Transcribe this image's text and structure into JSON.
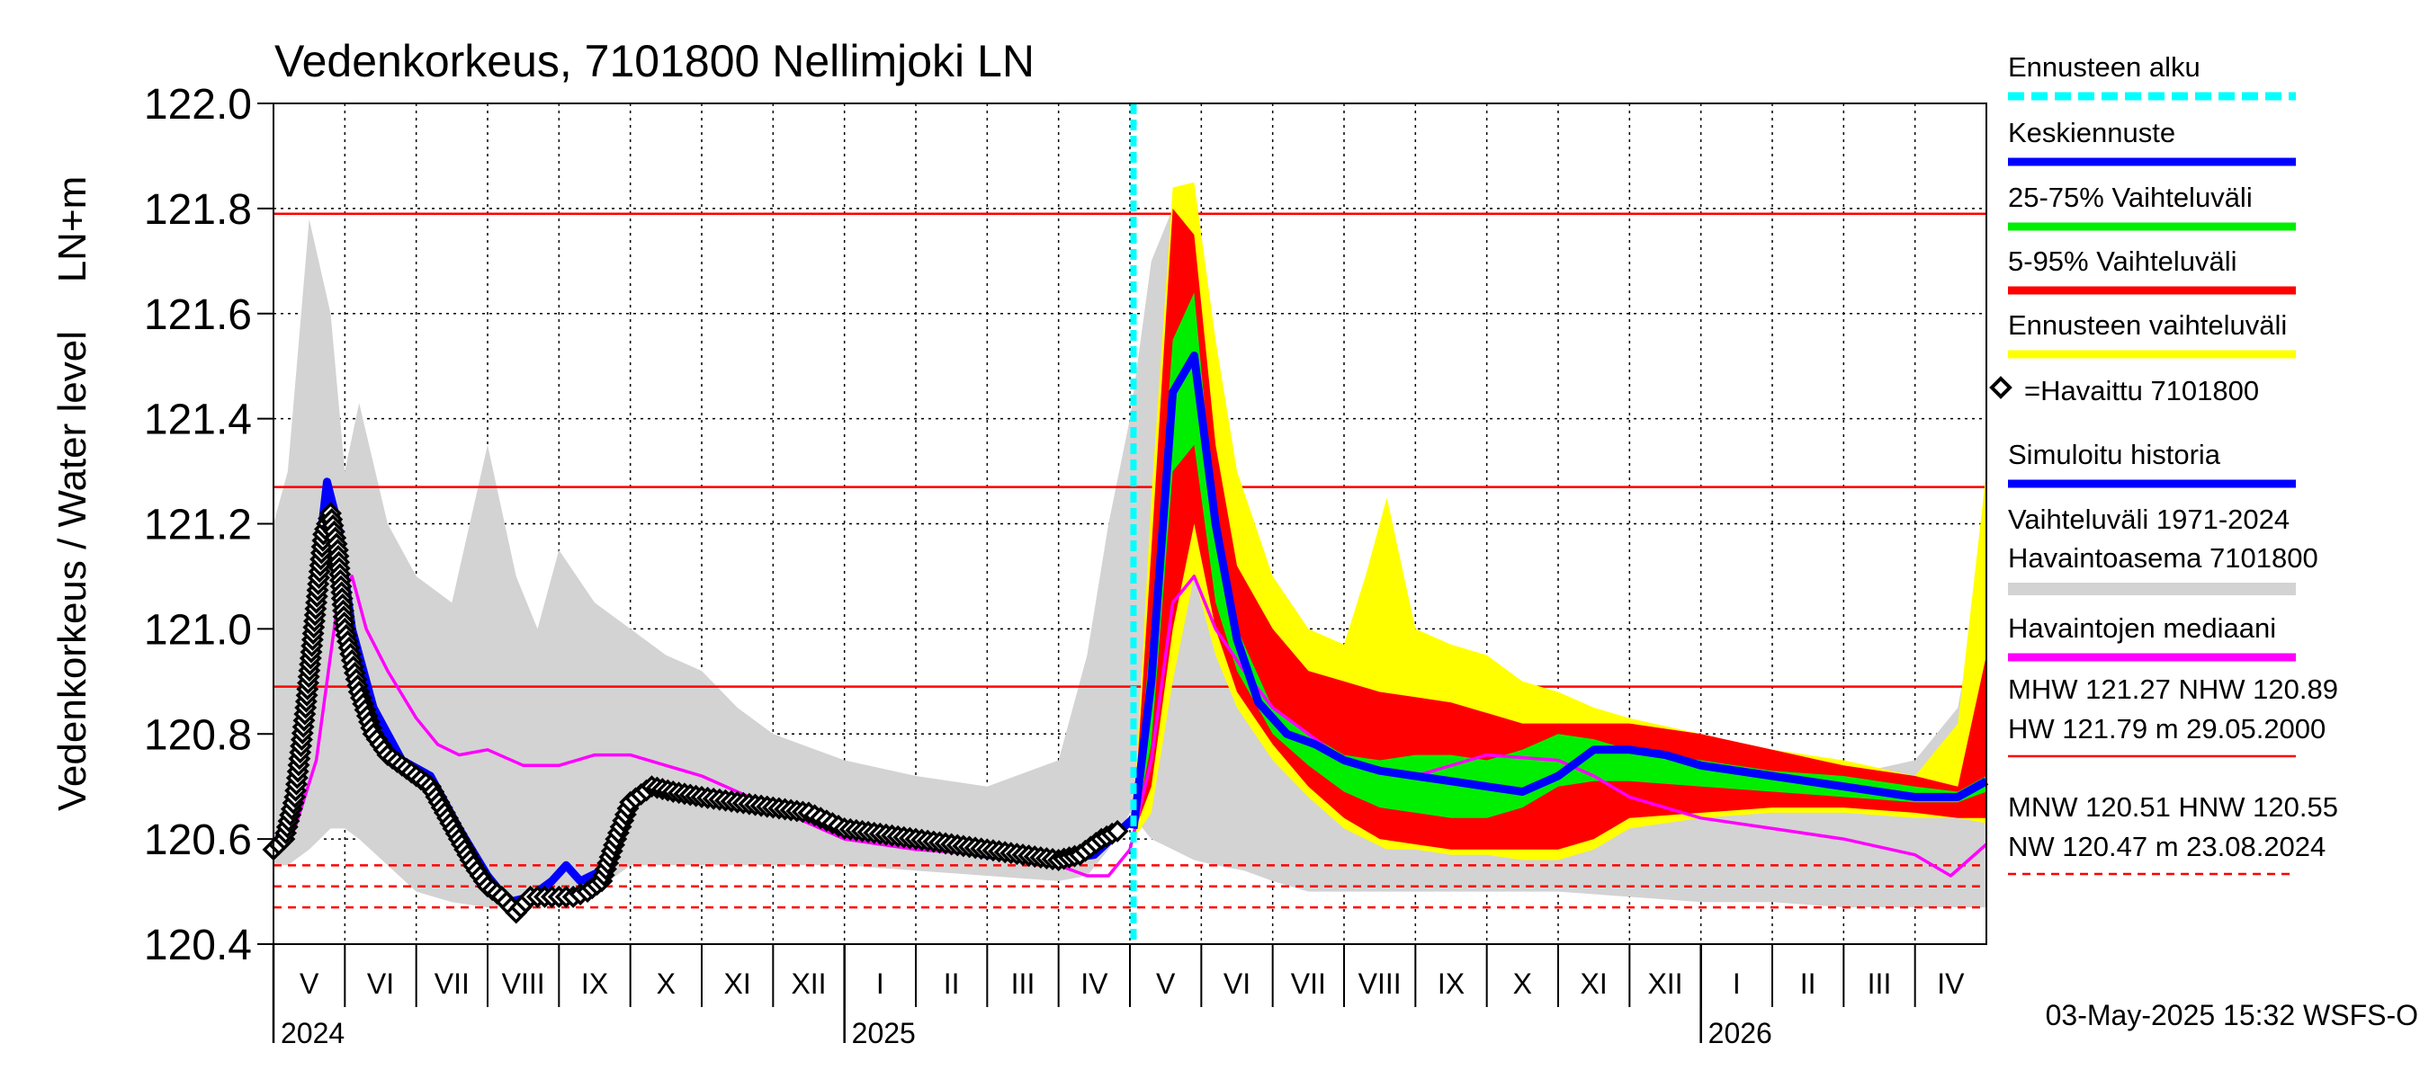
{
  "chart_data": {
    "type": "line",
    "title": "Vedenkorkeus, 7101800 Nellimjoki LN",
    "ylabel_outer": "Vedenkorkeus / Water level",
    "ylabel_inner": "LN+m",
    "ylim": [
      120.4,
      122.0
    ],
    "yticks": [
      {
        "value": 120.4,
        "label": "120.4"
      },
      {
        "value": 120.6,
        "label": "120.6"
      },
      {
        "value": 120.8,
        "label": "120.8"
      },
      {
        "value": 121.0,
        "label": "121.0"
      },
      {
        "value": 121.2,
        "label": "121.2"
      },
      {
        "value": 121.4,
        "label": "121.4"
      },
      {
        "value": 121.6,
        "label": "121.6"
      },
      {
        "value": 121.8,
        "label": "121.8"
      },
      {
        "value": 122.0,
        "label": "122.0"
      }
    ],
    "x_range_months": [
      0,
      24
    ],
    "x_unit_note": "months since 2024-05-01",
    "months": [
      {
        "label": "V",
        "start": 0
      },
      {
        "label": "VI",
        "start": 1
      },
      {
        "label": "VII",
        "start": 2
      },
      {
        "label": "VIII",
        "start": 3
      },
      {
        "label": "IX",
        "start": 4
      },
      {
        "label": "X",
        "start": 5
      },
      {
        "label": "XI",
        "start": 6
      },
      {
        "label": "XII",
        "start": 7
      },
      {
        "label": "I",
        "start": 8
      },
      {
        "label": "II",
        "start": 9
      },
      {
        "label": "III",
        "start": 10
      },
      {
        "label": "IV",
        "start": 11
      },
      {
        "label": "V",
        "start": 12
      },
      {
        "label": "VI",
        "start": 13
      },
      {
        "label": "VII",
        "start": 14
      },
      {
        "label": "VIII",
        "start": 15
      },
      {
        "label": "IX",
        "start": 16
      },
      {
        "label": "X",
        "start": 17
      },
      {
        "label": "XI",
        "start": 18
      },
      {
        "label": "XII",
        "start": 19
      },
      {
        "label": "I",
        "start": 20
      },
      {
        "label": "II",
        "start": 21
      },
      {
        "label": "III",
        "start": 22
      },
      {
        "label": "IV",
        "start": 23
      }
    ],
    "years": [
      {
        "label": "2024",
        "at": 0
      },
      {
        "label": "2025",
        "at": 8
      },
      {
        "label": "2026",
        "at": 20
      }
    ],
    "forecast_start": 12.05,
    "reference_lines": [
      {
        "name": "HW",
        "value": 121.79,
        "style": "solid"
      },
      {
        "name": "MHW",
        "value": 121.27,
        "style": "solid"
      },
      {
        "name": "NHW",
        "value": 120.89,
        "style": "solid"
      },
      {
        "name": "HNW",
        "value": 120.55,
        "style": "dashed"
      },
      {
        "name": "MNW",
        "value": 120.51,
        "style": "dashed"
      },
      {
        "name": "NW",
        "value": 120.47,
        "style": "dashed"
      }
    ],
    "colors": {
      "historical_range": "#d3d3d3",
      "forecast_range": "#ffff00",
      "p5_95": "#ff0000",
      "p25_75": "#00ee00",
      "mean_forecast": "#0000ff",
      "simulated": "#0000ff",
      "observed": "#000000",
      "median": "#ff00ff",
      "forecast_start": "#00ffff",
      "reference": "#ff0000"
    },
    "historical_range": {
      "x": [
        0,
        0.2,
        0.5,
        0.8,
        1.0,
        1.2,
        1.6,
        2.0,
        2.5,
        3.0,
        3.4,
        3.7,
        4.0,
        4.5,
        5.0,
        5.5,
        6.0,
        6.5,
        7.0,
        8.0,
        9.0,
        10.0,
        11.0,
        11.4,
        11.7,
        12.0,
        12.3,
        12.6,
        12.9,
        13.2,
        13.6,
        14.0,
        14.5,
        15.0,
        15.5,
        16.0,
        17.0,
        18.0,
        19.0,
        20.0,
        21.0,
        22.0,
        23.0,
        23.6,
        24.0
      ],
      "upper": [
        121.2,
        121.3,
        121.78,
        121.6,
        121.3,
        121.43,
        121.2,
        121.1,
        121.05,
        121.35,
        121.1,
        121.0,
        121.15,
        121.05,
        121.0,
        120.95,
        120.92,
        120.85,
        120.8,
        120.75,
        120.72,
        120.7,
        120.75,
        120.95,
        121.2,
        121.4,
        121.7,
        121.8,
        121.6,
        121.4,
        121.2,
        121.1,
        121.0,
        120.95,
        120.9,
        120.9,
        120.85,
        120.8,
        120.78,
        120.75,
        120.74,
        120.72,
        120.75,
        120.85,
        121.15
      ],
      "lower": [
        120.55,
        120.55,
        120.58,
        120.62,
        120.62,
        120.6,
        120.55,
        120.5,
        120.48,
        120.47,
        120.47,
        120.48,
        120.48,
        120.5,
        120.55,
        120.55,
        120.55,
        120.55,
        120.55,
        120.55,
        120.54,
        120.53,
        120.52,
        120.53,
        120.58,
        120.65,
        120.6,
        120.58,
        120.56,
        120.55,
        120.54,
        120.52,
        120.5,
        120.5,
        120.5,
        120.5,
        120.5,
        120.5,
        120.49,
        120.48,
        120.48,
        120.47,
        120.47,
        120.47,
        120.47
      ]
    },
    "forecast_range": {
      "x": [
        12.05,
        12.3,
        12.6,
        12.9,
        13.2,
        13.5,
        14.0,
        14.5,
        15.0,
        15.3,
        15.6,
        16.0,
        16.5,
        17.0,
        17.5,
        18.0,
        18.5,
        19.0,
        20.0,
        21.0,
        22.0,
        23.0,
        23.6,
        24.0
      ],
      "upper": [
        120.64,
        121.25,
        121.84,
        121.85,
        121.55,
        121.3,
        121.1,
        121.0,
        120.97,
        121.1,
        121.25,
        121.0,
        120.97,
        120.95,
        120.9,
        120.88,
        120.85,
        120.83,
        120.8,
        120.77,
        120.75,
        120.72,
        120.82,
        121.3
      ],
      "lower": [
        120.6,
        120.65,
        120.9,
        121.1,
        120.95,
        120.85,
        120.75,
        120.68,
        120.62,
        120.6,
        120.58,
        120.58,
        120.57,
        120.57,
        120.56,
        120.56,
        120.58,
        120.62,
        120.64,
        120.65,
        120.65,
        120.64,
        120.64,
        120.63
      ]
    },
    "p5_95": {
      "x": [
        12.05,
        12.3,
        12.6,
        12.9,
        13.2,
        13.5,
        14.0,
        14.5,
        15.0,
        15.5,
        16.0,
        16.5,
        17.0,
        17.5,
        18.0,
        18.5,
        19.0,
        20.0,
        21.0,
        22.0,
        23.0,
        23.6,
        24.0
      ],
      "upper": [
        120.63,
        121.15,
        121.8,
        121.75,
        121.35,
        121.12,
        121.0,
        120.92,
        120.9,
        120.88,
        120.87,
        120.86,
        120.84,
        120.82,
        120.82,
        120.82,
        120.82,
        120.8,
        120.77,
        120.74,
        120.72,
        120.7,
        120.95
      ],
      "lower": [
        120.61,
        120.7,
        121.0,
        121.2,
        121.0,
        120.88,
        120.78,
        120.7,
        120.64,
        120.6,
        120.59,
        120.58,
        120.58,
        120.58,
        120.58,
        120.6,
        120.64,
        120.65,
        120.66,
        120.66,
        120.65,
        120.64,
        120.64
      ]
    },
    "p25_75": {
      "x": [
        12.05,
        12.3,
        12.6,
        12.9,
        13.2,
        13.5,
        14.0,
        14.5,
        15.0,
        15.5,
        16.0,
        16.5,
        17.0,
        17.5,
        18.0,
        18.5,
        19.0,
        20.0,
        21.0,
        22.0,
        23.0,
        23.6,
        24.0
      ],
      "upper": [
        120.62,
        121.0,
        121.55,
        121.64,
        121.2,
        121.0,
        120.85,
        120.8,
        120.76,
        120.75,
        120.76,
        120.76,
        120.75,
        120.77,
        120.8,
        120.79,
        120.77,
        120.75,
        120.73,
        120.72,
        120.7,
        120.69,
        120.72
      ],
      "lower": [
        120.61,
        120.78,
        121.3,
        121.35,
        121.05,
        120.92,
        120.8,
        120.74,
        120.69,
        120.66,
        120.65,
        120.64,
        120.64,
        120.66,
        120.7,
        120.71,
        120.71,
        120.7,
        120.69,
        120.68,
        120.67,
        120.67,
        120.69
      ]
    },
    "mean_forecast": {
      "x": [
        12.05,
        12.3,
        12.6,
        12.9,
        13.2,
        13.5,
        13.8,
        14.2,
        14.6,
        15.0,
        15.5,
        16.0,
        16.5,
        17.0,
        17.5,
        18.0,
        18.5,
        19.0,
        19.5,
        20.0,
        21.0,
        22.0,
        23.0,
        23.6,
        24.0
      ],
      "y": [
        120.62,
        120.9,
        121.45,
        121.52,
        121.2,
        120.98,
        120.86,
        120.8,
        120.78,
        120.75,
        120.73,
        120.72,
        120.71,
        120.7,
        120.69,
        120.72,
        120.77,
        120.77,
        120.76,
        120.74,
        120.72,
        120.7,
        120.68,
        120.68,
        120.71
      ]
    },
    "simulated_history": {
      "x": [
        0,
        0.2,
        0.4,
        0.6,
        0.75,
        0.9,
        1.1,
        1.4,
        1.8,
        2.2,
        2.6,
        3.0,
        3.3,
        3.6,
        3.9,
        4.1,
        4.3,
        4.6,
        4.8,
        5.0,
        5.4,
        6.0,
        6.5,
        7.0,
        7.5,
        8.0,
        9.0,
        10.0,
        11.0,
        11.5,
        12.05
      ],
      "y": [
        120.58,
        120.64,
        120.8,
        121.1,
        121.28,
        121.2,
        121.0,
        120.85,
        120.75,
        120.72,
        120.62,
        120.53,
        120.48,
        120.49,
        120.52,
        120.55,
        120.52,
        120.54,
        120.62,
        120.68,
        120.7,
        120.68,
        120.67,
        120.66,
        120.65,
        120.61,
        120.6,
        120.57,
        120.56,
        120.57,
        120.64
      ]
    },
    "observed": {
      "x": [
        0,
        0.15,
        0.3,
        0.45,
        0.6,
        0.7,
        0.8,
        0.9,
        1.0,
        1.2,
        1.4,
        1.6,
        1.8,
        2.0,
        2.2,
        2.4,
        2.6,
        2.8,
        3.0,
        3.2,
        3.4,
        3.6,
        3.8,
        4.0,
        4.2,
        4.4,
        4.6,
        4.8,
        5.0,
        5.3,
        5.6,
        6.0,
        6.5,
        7.0,
        7.5,
        8.0,
        8.5,
        9.0,
        9.5,
        10.0,
        10.5,
        11.0,
        11.3,
        11.6,
        11.9
      ],
      "y": [
        120.58,
        120.6,
        120.68,
        120.85,
        121.05,
        121.18,
        121.22,
        121.15,
        121.0,
        120.88,
        120.8,
        120.76,
        120.74,
        120.72,
        120.7,
        120.65,
        120.6,
        120.55,
        120.51,
        120.49,
        120.46,
        120.49,
        120.49,
        120.49,
        120.49,
        120.5,
        120.52,
        120.6,
        120.67,
        120.7,
        120.69,
        120.68,
        120.67,
        120.66,
        120.65,
        120.62,
        120.61,
        120.6,
        120.59,
        120.58,
        120.57,
        120.56,
        120.57,
        120.6,
        120.62
      ]
    },
    "median": {
      "x": [
        0,
        0.3,
        0.6,
        0.9,
        1.1,
        1.3,
        1.6,
        2.0,
        2.3,
        2.6,
        3.0,
        3.5,
        4.0,
        4.5,
        5.0,
        5.5,
        6.0,
        7.0,
        8.0,
        9.0,
        10.0,
        11.0,
        11.4,
        11.7,
        12.0,
        12.3,
        12.6,
        12.9,
        13.2,
        13.6,
        14.0,
        15.0,
        16.0,
        17.0,
        18.0,
        18.5,
        19.0,
        20.0,
        21.0,
        22.0,
        23.0,
        23.5,
        24.0
      ],
      "y": [
        120.58,
        120.62,
        120.75,
        121.05,
        121.1,
        121.0,
        120.92,
        120.83,
        120.78,
        120.76,
        120.77,
        120.74,
        120.74,
        120.76,
        120.76,
        120.74,
        120.72,
        120.66,
        120.6,
        120.58,
        120.57,
        120.55,
        120.53,
        120.53,
        120.58,
        120.75,
        121.05,
        121.1,
        121.0,
        120.92,
        120.85,
        120.75,
        120.72,
        120.76,
        120.75,
        120.72,
        120.68,
        120.64,
        120.62,
        120.6,
        120.57,
        120.53,
        120.59
      ]
    },
    "legend": {
      "items": [
        {
          "label": "Ennusteen alku",
          "kind": "dashed-line",
          "color": "#00ffff"
        },
        {
          "label": "Keskiennuste",
          "kind": "line",
          "color": "#0000ff"
        },
        {
          "label": "25-75% Vaihteluväli",
          "kind": "line",
          "color": "#00ee00"
        },
        {
          "label": "5-95% Vaihteluväli",
          "kind": "line",
          "color": "#ff0000"
        },
        {
          "label": "Ennusteen vaihteluväli",
          "kind": "line",
          "color": "#ffff00"
        },
        {
          "label": "=Havaittu 7101800",
          "kind": "marker",
          "color": "#000000"
        },
        {
          "label": "Simuloitu historia",
          "kind": "line",
          "color": "#0000ff"
        },
        {
          "label": "Vaihteluväli 1971-2024",
          "label2": " Havaintoasema 7101800",
          "kind": "band",
          "color": "#d3d3d3"
        },
        {
          "label": "Havaintojen mediaani",
          "kind": "line",
          "color": "#ff00ff"
        }
      ],
      "stats": [
        {
          "lines": [
            "MHW 121.27 NHW 120.89",
            "HW 121.79 m 29.05.2000"
          ],
          "style": "solid"
        },
        {
          "lines": [
            "MNW 120.51 HNW 120.55",
            "NW 120.47 m 23.08.2024"
          ],
          "style": "dashed"
        }
      ]
    },
    "footer": "03-May-2025 15:32 WSFS-O"
  }
}
